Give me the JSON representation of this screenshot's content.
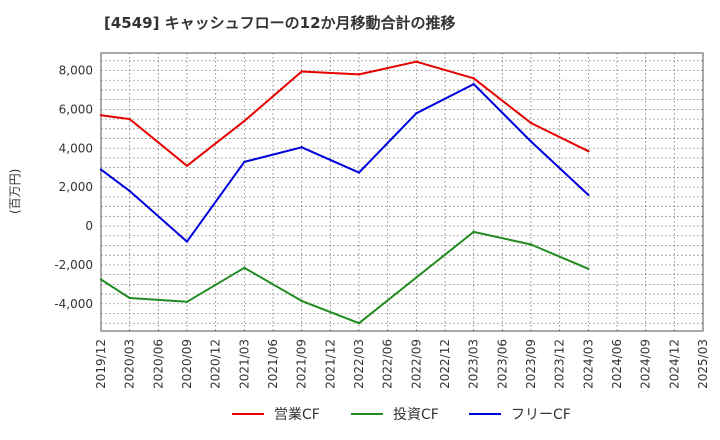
{
  "chart_data": {
    "type": "line",
    "title": "[4549]  キャッシュフローの12か月移動合計の推移",
    "ylabel": "(百万円)",
    "xlabel": "",
    "ylim": [
      -5400,
      8900
    ],
    "yticks": [
      -4000,
      -2000,
      0,
      2000,
      4000,
      6000,
      8000
    ],
    "ytick_labels": [
      "-4,000",
      "-2,000",
      "0",
      "2,000",
      "4,000",
      "6,000",
      "8,000"
    ],
    "categories": [
      "2019/12",
      "2020/03",
      "2020/06",
      "2020/09",
      "2020/12",
      "2021/03",
      "2021/06",
      "2021/09",
      "2021/12",
      "2022/03",
      "2022/06",
      "2022/09",
      "2022/12",
      "2023/03",
      "2023/06",
      "2023/09",
      "2023/12",
      "2024/03",
      "2024/06",
      "2024/09",
      "2024/12",
      "2025/03"
    ],
    "grid": true,
    "legend_position": "bottom",
    "series": [
      {
        "name": "営業CF",
        "color": "#e60000",
        "values": [
          5700,
          5500,
          null,
          3100,
          null,
          5400,
          null,
          7950,
          null,
          7800,
          null,
          8450,
          null,
          7600,
          null,
          5300,
          null,
          3850,
          null,
          null,
          null,
          null
        ]
      },
      {
        "name": "投資CF",
        "color": "#228b22",
        "values": [
          -2750,
          -3700,
          null,
          -3900,
          null,
          -2150,
          null,
          -3850,
          null,
          -5000,
          null,
          -2650,
          null,
          -300,
          null,
          -950,
          null,
          -2200,
          null,
          null,
          null,
          null
        ]
      },
      {
        "name": "フリーCF",
        "color": "#0000dd",
        "values": [
          2900,
          1800,
          null,
          -800,
          null,
          3300,
          null,
          4050,
          null,
          2750,
          null,
          5800,
          null,
          7300,
          null,
          4350,
          null,
          1600,
          null,
          null,
          null,
          null
        ]
      }
    ]
  }
}
